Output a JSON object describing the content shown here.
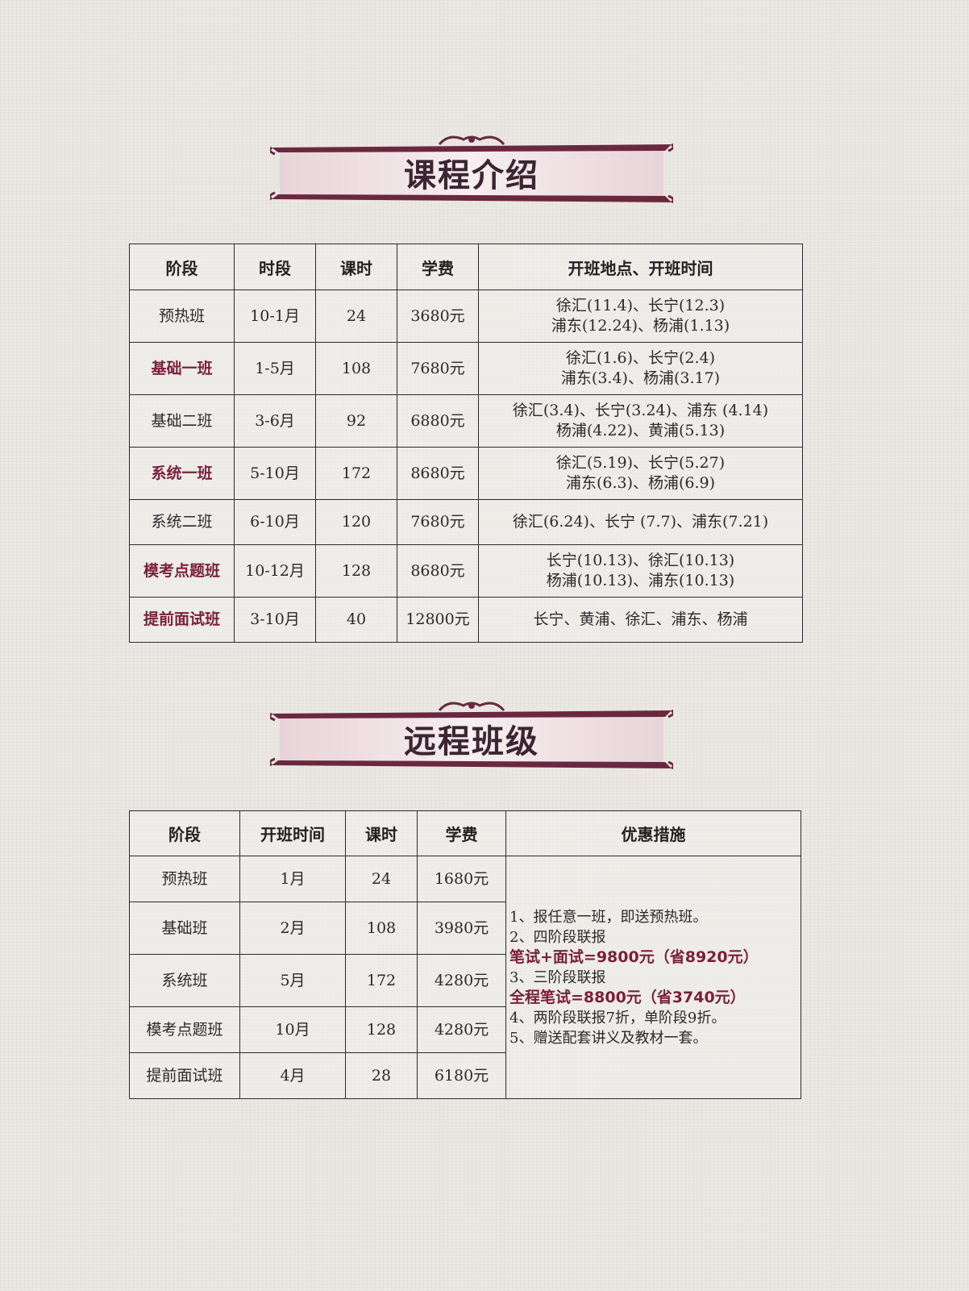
{
  "course_section": {
    "title": "课程介绍",
    "headers": [
      "阶段",
      "时段",
      "课时",
      "学费",
      "开班地点、开班时间"
    ],
    "rows": [
      {
        "stage": "预热班",
        "period": "10-1月",
        "hours": "24",
        "fee": "3680元",
        "loc1": "徐汇(11.4)、长宁(12.3)",
        "loc2": "浦东(12.24)、杨浦(1.13)"
      },
      {
        "stage": "基础一班",
        "period": "1-5月",
        "hours": "108",
        "fee": "7680元",
        "loc1": "徐汇(1.6)、长宁(2.4)",
        "loc2": "浦东(3.4)、杨浦(3.17)"
      },
      {
        "stage": "基础二班",
        "period": "3-6月",
        "hours": "92",
        "fee": "6880元",
        "loc1": "徐汇(3.4)、长宁(3.24)、浦东 (4.14)",
        "loc2": "杨浦(4.22)、黄浦(5.13)"
      },
      {
        "stage": "系统一班",
        "period": "5-10月",
        "hours": "172",
        "fee": "8680元",
        "loc1": "徐汇(5.19)、长宁(5.27)",
        "loc2": "浦东(6.3)、杨浦(6.9)"
      },
      {
        "stage": "系统二班",
        "period": "6-10月",
        "hours": "120",
        "fee": "7680元",
        "loc1": "徐汇(6.24)、长宁 (7.7)、浦东(7.21)",
        "loc2": ""
      },
      {
        "stage": "模考点题班",
        "period": "10-12月",
        "hours": "128",
        "fee": "8680元",
        "loc1": "长宁(10.13)、徐汇(10.13)",
        "loc2": "杨浦(10.13)、浦东(10.13)"
      },
      {
        "stage": "提前面试班",
        "period": "3-10月",
        "hours": "40",
        "fee": "12800元",
        "loc1": "长宁、黄浦、徐汇、浦东、杨浦",
        "loc2": ""
      }
    ]
  },
  "remote_section": {
    "title": "远程班级",
    "headers": [
      "阶段",
      "开班时间",
      "课时",
      "学费",
      "优惠措施"
    ],
    "rows": [
      {
        "stage": "预热班",
        "start": "1月",
        "hours": "24",
        "fee": "1680元"
      },
      {
        "stage": "基础班",
        "start": "2月",
        "hours": "108",
        "fee": "3980元"
      },
      {
        "stage": "系统班",
        "start": "5月",
        "hours": "172",
        "fee": "4280元"
      },
      {
        "stage": "模考点题班",
        "start": "10月",
        "hours": "128",
        "fee": "4280元"
      },
      {
        "stage": "提前面试班",
        "start": "4月",
        "hours": "28",
        "fee": "6180元"
      }
    ],
    "promo": [
      "1、报任意一班，即送预热班。",
      "2、四阶段联报",
      "笔试+面试=9800元（省8920元）",
      "3、三阶段联报",
      "全程笔试=8800元（省3740元）",
      "4、两阶段联报7折，单阶段9折。",
      "5、赠送配套讲义及教材一套。"
    ]
  },
  "colors": {
    "accent": "#7a1f3e",
    "banner": "#6a2840"
  }
}
